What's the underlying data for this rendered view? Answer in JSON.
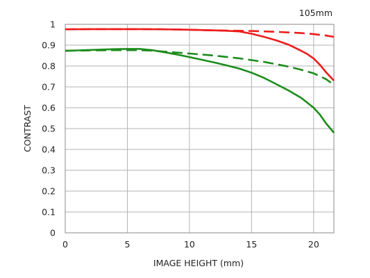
{
  "chart_data": {
    "type": "line",
    "title": "",
    "annotation": "105mm",
    "xlabel": "IMAGE HEIGHT (mm)",
    "ylabel": "CONTRAST",
    "xlim": [
      0,
      21.63
    ],
    "ylim": [
      0,
      1
    ],
    "x_ticks": [
      0,
      5,
      10,
      15,
      20
    ],
    "x_tick_labels": [
      "0",
      "5",
      "10",
      "15",
      "20"
    ],
    "y_ticks": [
      0,
      0.1,
      0.2,
      0.3,
      0.4,
      0.5,
      0.6,
      0.7,
      0.8,
      0.9,
      1
    ],
    "y_tick_labels": [
      "0",
      "0.1",
      "0.2",
      "0.3",
      "0.4",
      "0.5",
      "0.6",
      "0.7",
      "0.8",
      "0.9",
      "1"
    ],
    "grid": true,
    "series": [
      {
        "color": "#ee1c1c",
        "dash": "solid",
        "x": [
          0,
          2,
          4,
          6,
          8,
          10,
          12,
          13,
          14,
          15,
          16,
          17,
          18,
          19,
          19.5,
          20,
          20.5,
          21,
          21.63
        ],
        "y": [
          0.976,
          0.977,
          0.977,
          0.977,
          0.976,
          0.974,
          0.971,
          0.969,
          0.966,
          0.955,
          0.94,
          0.923,
          0.902,
          0.873,
          0.857,
          0.836,
          0.806,
          0.77,
          0.73
        ]
      },
      {
        "color": "#ee1c1c",
        "dash": "dashed",
        "x": [
          0,
          2,
          4,
          6,
          8,
          10,
          12,
          14,
          15,
          16,
          17,
          18,
          19,
          20,
          21,
          21.63
        ],
        "y": [
          0.976,
          0.977,
          0.977,
          0.977,
          0.976,
          0.974,
          0.971,
          0.969,
          0.968,
          0.966,
          0.964,
          0.961,
          0.958,
          0.953,
          0.946,
          0.94
        ]
      },
      {
        "color": "#1c8c1c",
        "dash": "solid",
        "x": [
          0,
          1,
          2,
          3,
          4,
          5,
          6,
          7,
          8,
          9,
          10,
          11,
          12,
          13,
          14,
          15,
          16,
          17,
          18,
          19,
          20,
          20.5,
          21,
          21.63
        ],
        "y": [
          0.873,
          0.875,
          0.877,
          0.879,
          0.881,
          0.882,
          0.882,
          0.876,
          0.866,
          0.855,
          0.843,
          0.83,
          0.817,
          0.803,
          0.788,
          0.768,
          0.743,
          0.713,
          0.682,
          0.647,
          0.6,
          0.567,
          0.525,
          0.48
        ]
      },
      {
        "color": "#1c8c1c",
        "dash": "dashed",
        "x": [
          0,
          2,
          4,
          6,
          7,
          8,
          10,
          12,
          14,
          16,
          18,
          19,
          20,
          21,
          21.63
        ],
        "y": [
          0.873,
          0.875,
          0.876,
          0.876,
          0.874,
          0.869,
          0.86,
          0.85,
          0.837,
          0.82,
          0.797,
          0.782,
          0.765,
          0.737,
          0.71
        ]
      }
    ]
  }
}
